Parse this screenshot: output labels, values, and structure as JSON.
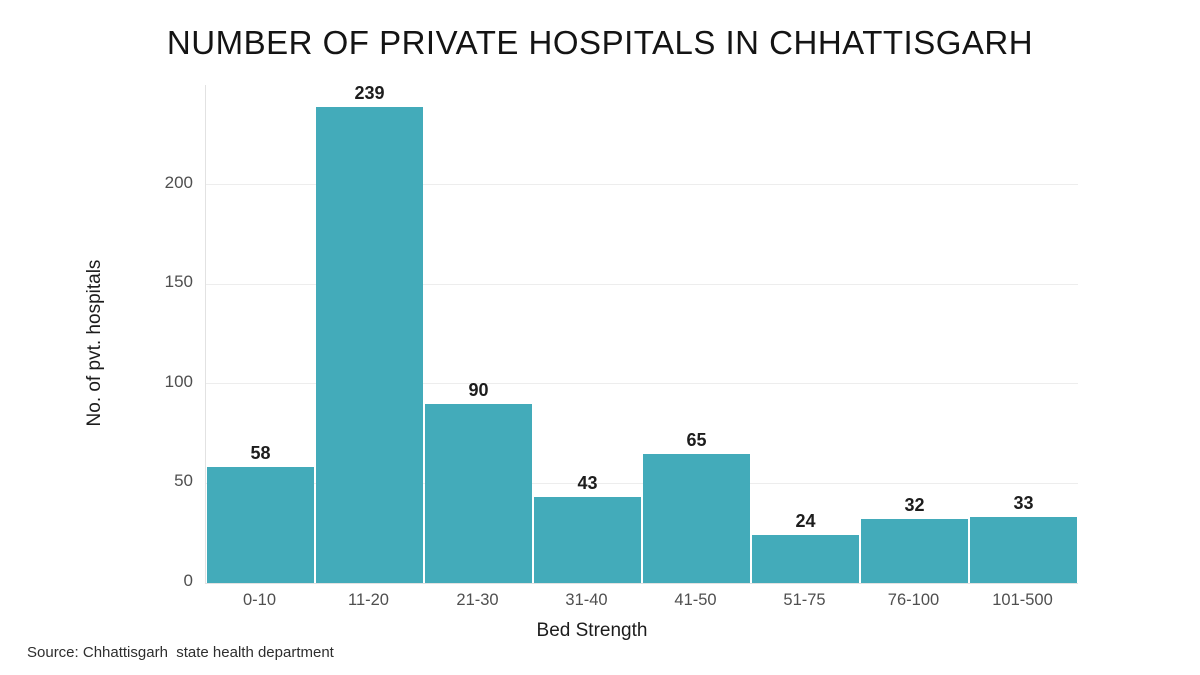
{
  "chart_data": {
    "type": "bar",
    "title": "NUMBER OF PRIVATE HOSPITALS IN CHHATTISGARH",
    "categories": [
      "0-10",
      "11-20",
      "21-30",
      "31-40",
      "41-50",
      "51-75",
      "76-100",
      "101-500"
    ],
    "values": [
      58,
      239,
      90,
      43,
      65,
      24,
      32,
      33
    ],
    "xlabel": "Bed Strength",
    "ylabel": "No. of pvt. hospitals",
    "ylim": [
      0,
      250
    ],
    "yticks": [
      0,
      50,
      100,
      150,
      200
    ],
    "legend": "none",
    "grid": "horizontal",
    "value_labels_shown": true,
    "bar_color": "#43abba",
    "grid_color": "#ededed",
    "source": "Source: Chhattisgarh  state health department"
  }
}
